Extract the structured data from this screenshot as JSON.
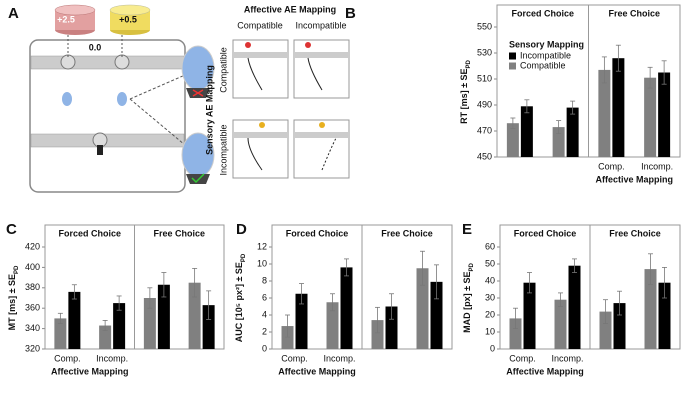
{
  "panel_a": {
    "letter": "A",
    "rewards": [
      "+2.5",
      "+0.5"
    ],
    "start_value": "0.0",
    "column_title": "Affective AE Mapping",
    "columns": [
      "Compatible",
      "Incompatible"
    ],
    "row_title": "Sensory AE Mapping",
    "rows": [
      "Compatible",
      "Incompatible"
    ]
  },
  "chart_data": [
    {
      "type": "bar",
      "letter": "B",
      "ylabel": "RT [ms] ± SE",
      "ylabel_subscript": "PD",
      "xlabel": "Affective Mapping",
      "ylim": [
        450,
        550
      ],
      "yticks": [
        450,
        470,
        490,
        510,
        530,
        550
      ],
      "legend": {
        "title": "Sensory Mapping"
      },
      "facets": [
        {
          "title": "Forced Choice",
          "series": [
            {
              "name": "Compatible",
              "color": "#808080",
              "values": [
                476,
                473
              ],
              "errors": [
                4,
                5
              ]
            },
            {
              "name": "Incompatible",
              "color": "#000000",
              "values": [
                489,
                488
              ],
              "errors": [
                5,
                5
              ]
            }
          ]
        },
        {
          "title": "Free Choice",
          "categories": [
            "Comp.",
            "Incomp."
          ],
          "series": [
            {
              "color": "#808080",
              "values": [
                517,
                511
              ],
              "errors": [
                10,
                8
              ]
            },
            {
              "color": "#000000",
              "values": [
                526,
                515
              ],
              "errors": [
                10,
                9
              ]
            }
          ]
        }
      ]
    },
    {
      "type": "bar",
      "letter": "C",
      "ylabel": "MT [ms] ± SE",
      "ylabel_subscript": "PD",
      "xlabel": "Affective Mapping",
      "ylim": [
        320,
        420
      ],
      "yticks": [
        320,
        340,
        360,
        380,
        400,
        420
      ],
      "facets": [
        {
          "title": "Forced Choice",
          "categories": [
            "Comp.",
            "Incomp."
          ],
          "series": [
            {
              "color": "#808080",
              "values": [
                350,
                343
              ],
              "errors": [
                5,
                5
              ]
            },
            {
              "color": "#000000",
              "values": [
                376,
                365
              ],
              "errors": [
                7,
                7
              ]
            }
          ]
        },
        {
          "title": "Free Choice",
          "series": [
            {
              "color": "#808080",
              "values": [
                370,
                385
              ],
              "errors": [
                10,
                14
              ]
            },
            {
              "color": "#000000",
              "values": [
                383,
                363
              ],
              "errors": [
                12,
                14
              ]
            }
          ]
        }
      ]
    },
    {
      "type": "bar",
      "letter": "D",
      "ylabel": "AUC [10⁵ px²] ± SE",
      "ylabel_subscript": "PD",
      "xlabel": "Affective Mapping",
      "ylim": [
        0,
        12
      ],
      "yticks": [
        0,
        2,
        4,
        6,
        8,
        10,
        12
      ],
      "facets": [
        {
          "title": "Forced Choice",
          "categories": [
            "Comp.",
            "Incomp."
          ],
          "series": [
            {
              "color": "#808080",
              "values": [
                2.7,
                5.5
              ],
              "errors": [
                1.3,
                1
              ]
            },
            {
              "color": "#000000",
              "values": [
                6.5,
                9.6
              ],
              "errors": [
                1.2,
                1
              ]
            }
          ]
        },
        {
          "title": "Free Choice",
          "series": [
            {
              "color": "#808080",
              "values": [
                3.4,
                9.5
              ],
              "errors": [
                1.5,
                2
              ]
            },
            {
              "color": "#000000",
              "values": [
                5,
                7.9
              ],
              "errors": [
                1.5,
                2
              ]
            }
          ]
        }
      ]
    },
    {
      "type": "bar",
      "letter": "E",
      "ylabel": "MAD [px] ± SE",
      "ylabel_subscript": "PD",
      "xlabel": "Affective Mapping",
      "ylim": [
        0,
        60
      ],
      "yticks": [
        0,
        10,
        20,
        30,
        40,
        50,
        60
      ],
      "facets": [
        {
          "title": "Forced Choice",
          "categories": [
            "Comp.",
            "Incomp."
          ],
          "series": [
            {
              "color": "#808080",
              "values": [
                18,
                29
              ],
              "errors": [
                6,
                4
              ]
            },
            {
              "color": "#000000",
              "values": [
                39,
                49
              ],
              "errors": [
                6,
                4
              ]
            }
          ]
        },
        {
          "title": "Free Choice",
          "series": [
            {
              "color": "#808080",
              "values": [
                22,
                47
              ],
              "errors": [
                7,
                9
              ]
            },
            {
              "color": "#000000",
              "values": [
                27,
                39
              ],
              "errors": [
                7,
                9
              ]
            }
          ]
        }
      ]
    }
  ]
}
